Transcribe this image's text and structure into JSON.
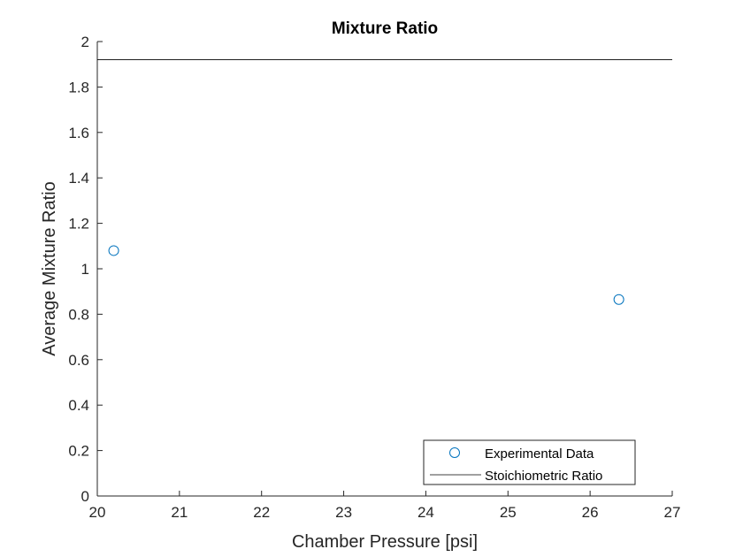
{
  "chart_data": {
    "type": "scatter",
    "title": "Mixture Ratio",
    "xlabel": "Chamber Pressure [psi]",
    "ylabel": "Average Mixture Ratio",
    "xlim": [
      20,
      27
    ],
    "ylim": [
      0,
      2
    ],
    "xticks": [
      "20",
      "21",
      "22",
      "23",
      "24",
      "25",
      "26",
      "27"
    ],
    "yticks": [
      "0",
      "0.2",
      "0.4",
      "0.6",
      "0.8",
      "1",
      "1.2",
      "1.4",
      "1.6",
      "1.8",
      "2"
    ],
    "grid": false,
    "legend_position": "bottom-right",
    "series": [
      {
        "name": "Experimental Data",
        "kind": "scatter",
        "marker": "open-circle",
        "color": "#0072BD",
        "points": [
          {
            "x": 20.2,
            "y": 1.08
          },
          {
            "x": 26.35,
            "y": 0.865
          }
        ]
      },
      {
        "name": "Stoichiometric Ratio",
        "kind": "hline",
        "color": "#000000",
        "y": 1.92
      }
    ]
  }
}
